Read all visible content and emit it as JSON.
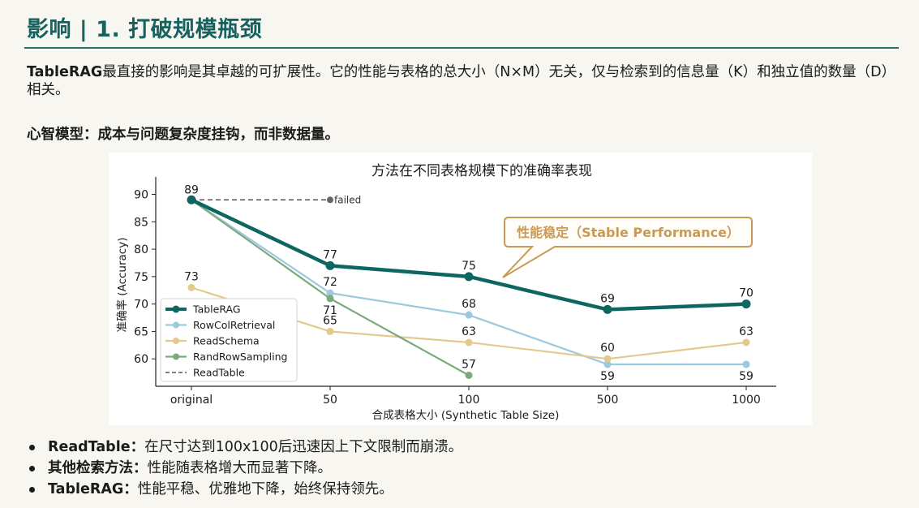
{
  "header": {
    "title": "影响 | 1. 打破规模瓶颈"
  },
  "intro": {
    "term": "TableRAG",
    "text": "最直接的影响是其卓越的可扩展性。它的性能与表格的总大小（N×M）无关，仅与检索到的信息量（K）和独立值的数量（D）相关。"
  },
  "subhead": "心智模型：成本与问题复杂度挂钩，而非数据量。",
  "chart_data": {
    "type": "line",
    "title": "方法在不同表格规模下的准确率表现",
    "xlabel": "合成表格大小 (Synthetic Table Size)",
    "ylabel": "准确率 (Accuracy)",
    "categories": [
      "original",
      "50",
      "100",
      "500",
      "1000"
    ],
    "yticks": [
      60,
      65,
      70,
      75,
      80,
      85,
      90
    ],
    "ylim": [
      55,
      92
    ],
    "series": [
      {
        "name": "TableRAG",
        "color": "#0e6661",
        "style": "solid-thick",
        "values": [
          89,
          77,
          75,
          69,
          70
        ],
        "labels": [
          "89",
          "77",
          "75",
          "69",
          "70"
        ]
      },
      {
        "name": "RowColRetrieval",
        "color": "#9cc9df",
        "style": "solid",
        "values": [
          89,
          72,
          68,
          59,
          59
        ],
        "labels": [
          "",
          "72",
          "68",
          "59",
          "59"
        ]
      },
      {
        "name": "ReadSchema",
        "color": "#e3c98d",
        "style": "solid",
        "values": [
          73,
          65,
          63,
          60,
          63
        ],
        "labels": [
          "73",
          "65",
          "63",
          "60",
          "63"
        ]
      },
      {
        "name": "RandRowSampling",
        "color": "#7daa7c",
        "style": "solid",
        "values": [
          89,
          71,
          57,
          null,
          null
        ],
        "labels": [
          "",
          "71",
          "57",
          "",
          ""
        ]
      },
      {
        "name": "ReadTable",
        "color": "#555555",
        "style": "dashed",
        "values": [
          89,
          89,
          null,
          null,
          null
        ],
        "labels": [
          "",
          "",
          "",
          "",
          ""
        ]
      }
    ],
    "annotations": [
      {
        "text": "failed",
        "category": "50",
        "value": 89
      },
      {
        "text": "性能稳定（Stable Performance）",
        "category": "100",
        "value": 75
      }
    ],
    "legend_position": "lower-left"
  },
  "bullets": [
    {
      "term": "ReadTable：",
      "text": "在尺寸达到100x100后迅速因上下文限制而崩溃。"
    },
    {
      "term": "其他检索方法：",
      "text": "性能随表格增大而显著下降。"
    },
    {
      "term": "TableRAG：",
      "text": "性能平稳、优雅地下降，始终保持领先。"
    }
  ],
  "colors": {
    "title": "#17625f",
    "rule": "#2b6f6d",
    "callout": "#c99a55"
  }
}
